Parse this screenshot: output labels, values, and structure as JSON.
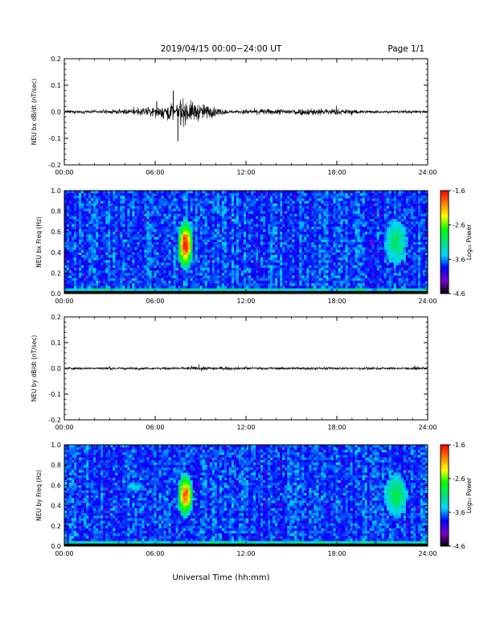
{
  "header": {
    "title": "2019/04/15  00:00−24:00 UT",
    "page": "Page 1/1"
  },
  "xlabel": "Universal Time (hh:mm)",
  "colorbar": {
    "label": "Log₁₀ Power",
    "ticks": [
      "-1.6",
      "-2.6",
      "-3.6",
      "-4.6"
    ],
    "range": [
      -4.6,
      -1.6
    ],
    "colors": [
      "#000000",
      "#7a00c8",
      "#0000ff",
      "#00d7ff",
      "#00e080",
      "#00ff00",
      "#ffff00",
      "#ff8000",
      "#ff0000"
    ]
  },
  "chart_data": [
    {
      "type": "line",
      "title": "",
      "ylabel": "NEU bx dB/dt (nT/sec)",
      "xlim": [
        0,
        24
      ],
      "ylim": [
        -0.2,
        0.2
      ],
      "xticks": [
        "00:00",
        "06:00",
        "12:00",
        "18:00",
        "24:00"
      ],
      "yticks": [
        "0.2",
        "0.1",
        "0.0",
        "-0.1",
        "-0.2"
      ],
      "series": [
        {
          "x_hours": [
            0,
            4,
            6.1,
            7.2,
            7.5,
            12,
            17,
            18.5,
            24
          ],
          "values": [
            0.0,
            0.02,
            0.04,
            0.08,
            -0.11,
            0.02,
            0.03,
            0.02,
            0.0
          ]
        }
      ]
    },
    {
      "type": "heatmap",
      "title": "",
      "ylabel": "NEU bx Freq (Hz)",
      "xlim": [
        0,
        24
      ],
      "ylim": [
        0,
        1
      ],
      "xticks": [
        "00:00",
        "06:00",
        "12:00",
        "18:00",
        "24:00"
      ],
      "yticks": [
        "1.0",
        "0.8",
        "0.6",
        "0.4",
        "0.2",
        "0.0"
      ],
      "zlabel": "Log₁₀ Power",
      "zlim": [
        -4.6,
        -1.6
      ],
      "features": [
        {
          "t_hours": [
            7.5,
            8.5
          ],
          "freq_hz": [
            0.25,
            0.7
          ],
          "peak_log_power": -1.6
        },
        {
          "t_hours": [
            21.2,
            22.6
          ],
          "freq_hz": [
            0.3,
            0.7
          ],
          "peak_log_power": -3.0
        }
      ]
    },
    {
      "type": "line",
      "title": "",
      "ylabel": "NEU by dB/dt (nT/sec)",
      "xlim": [
        0,
        24
      ],
      "ylim": [
        -0.2,
        0.2
      ],
      "xticks": [
        "00:00",
        "06:00",
        "12:00",
        "18:00",
        "24:00"
      ],
      "yticks": [
        "0.2",
        "0.1",
        "0.0",
        "-0.1",
        "-0.2"
      ],
      "series": [
        {
          "x_hours": [
            0,
            7,
            9,
            12,
            17,
            24
          ],
          "values": [
            0.0,
            0.01,
            0.015,
            0.01,
            0.01,
            0.0
          ]
        }
      ]
    },
    {
      "type": "heatmap",
      "title": "",
      "ylabel": "NEU by Freq (Hz)",
      "xlim": [
        0,
        24
      ],
      "ylim": [
        0,
        1
      ],
      "xticks": [
        "00:00",
        "06:00",
        "12:00",
        "18:00",
        "24:00"
      ],
      "yticks": [
        "1.0",
        "0.8",
        "0.6",
        "0.4",
        "0.2",
        "0.0"
      ],
      "zlabel": "Log₁₀ Power",
      "zlim": [
        -4.6,
        -1.6
      ],
      "features": [
        {
          "t_hours": [
            4.2,
            5.2
          ],
          "freq_hz": [
            0.55,
            0.62
          ],
          "peak_log_power": -3.4
        },
        {
          "t_hours": [
            7.5,
            8.5
          ],
          "freq_hz": [
            0.3,
            0.7
          ],
          "peak_log_power": -1.8
        },
        {
          "t_hours": [
            21.2,
            22.6
          ],
          "freq_hz": [
            0.3,
            0.7
          ],
          "peak_log_power": -2.9
        }
      ]
    }
  ]
}
